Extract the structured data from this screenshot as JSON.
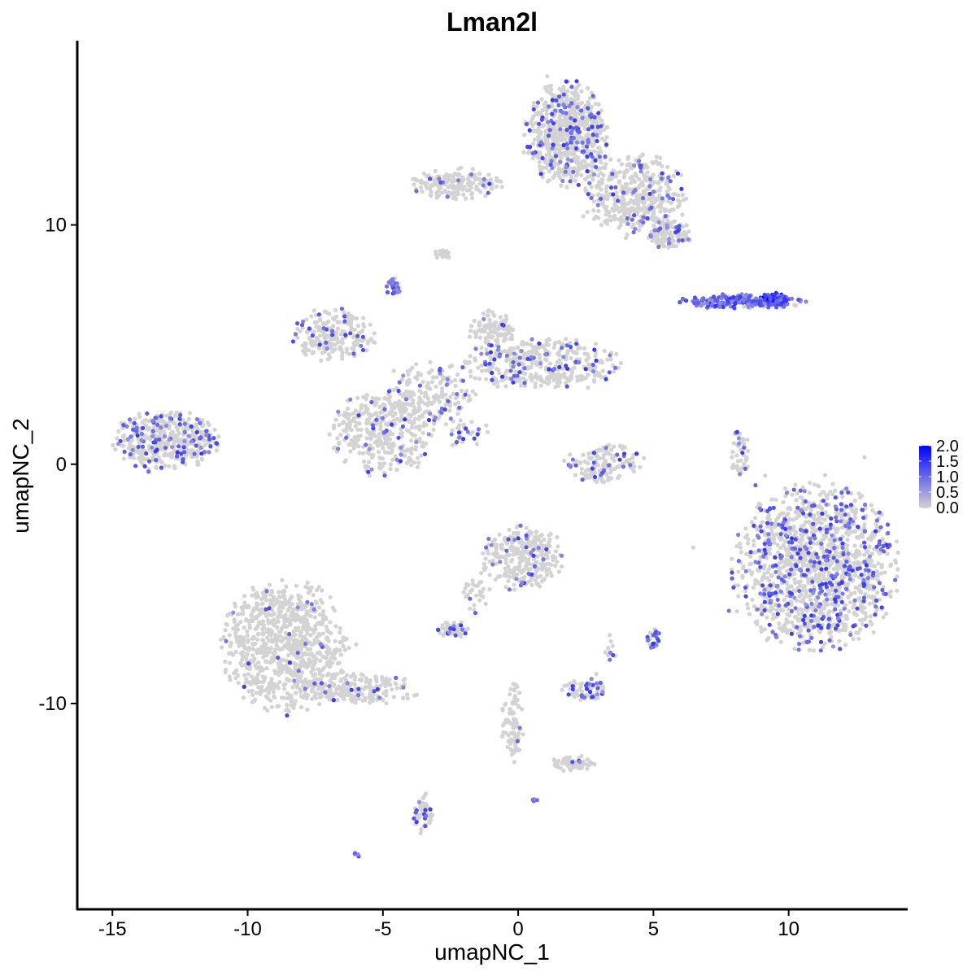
{
  "chart_data": {
    "type": "scatter",
    "title": "Lman2l",
    "xlabel": "umapNC_1",
    "ylabel": "umapNC_2",
    "xlim": [
      -16.3,
      14.4
    ],
    "ylim": [
      -18.6,
      17.7
    ],
    "xticks": [
      -15,
      -10,
      -5,
      0,
      5,
      10
    ],
    "yticks": [
      -10,
      0,
      10
    ],
    "xtick_labels": [
      "-15",
      "-10",
      "-5",
      "0",
      "5",
      "10"
    ],
    "ytick_labels": [
      "-10",
      "0",
      "10"
    ],
    "grid": false,
    "color_low": "#D3D3D3",
    "color_high": "#0000FF",
    "legend": {
      "placement": "right",
      "range": [
        0,
        2.0
      ],
      "labels": [
        "2.0",
        "1.5",
        "1.0",
        "0.5",
        "0.0"
      ],
      "values": [
        2.0,
        1.5,
        1.0,
        0.5,
        0.0
      ]
    },
    "clusters": [
      {
        "center": [
          -13,
          1
        ],
        "spread": [
          1.5,
          0.9
        ],
        "n": 420,
        "expressing_fraction": 0.2
      },
      {
        "center": [
          1.8,
          13.8
        ],
        "spread": [
          1.1,
          1.6
        ],
        "n": 700,
        "expressing_fraction": 0.15
      },
      {
        "center": [
          4.4,
          11.2
        ],
        "spread": [
          1.4,
          1.3
        ],
        "n": 420,
        "expressing_fraction": 0.08
      },
      {
        "center": [
          5.6,
          9.6
        ],
        "spread": [
          0.6,
          0.45
        ],
        "n": 120,
        "expressing_fraction": 0.08
      },
      {
        "center": [
          -2.3,
          11.7
        ],
        "spread": [
          1.2,
          0.45
        ],
        "n": 180,
        "expressing_fraction": 0.05
      },
      {
        "center": [
          -2.8,
          8.8
        ],
        "spread": [
          0.25,
          0.15
        ],
        "n": 20,
        "expressing_fraction": 0.0
      },
      {
        "center": [
          -4.6,
          7.4
        ],
        "spread": [
          0.2,
          0.3
        ],
        "n": 30,
        "expressing_fraction": 0.7
      },
      {
        "center": [
          8.3,
          6.8
        ],
        "spread": [
          1.7,
          0.22
        ],
        "n": 200,
        "expressing_fraction": 0.75
      },
      {
        "center": [
          9.5,
          6.9
        ],
        "spread": [
          0.35,
          0.2
        ],
        "n": 70,
        "expressing_fraction": 0.95
      },
      {
        "center": [
          -6.8,
          5.4
        ],
        "spread": [
          1.1,
          0.8
        ],
        "n": 220,
        "expressing_fraction": 0.12
      },
      {
        "center": [
          -5.0,
          1.3
        ],
        "spread": [
          1.4,
          1.3
        ],
        "n": 380,
        "expressing_fraction": 0.1
      },
      {
        "center": [
          0.9,
          4.2
        ],
        "spread": [
          2.1,
          0.8
        ],
        "n": 380,
        "expressing_fraction": 0.15
      },
      {
        "center": [
          -1.0,
          5.6
        ],
        "spread": [
          0.6,
          0.6
        ],
        "n": 100,
        "expressing_fraction": 0.1
      },
      {
        "center": [
          -3.0,
          3.0
        ],
        "spread": [
          1.1,
          1.0
        ],
        "n": 160,
        "expressing_fraction": 0.08
      },
      {
        "center": [
          -1.8,
          1.3
        ],
        "spread": [
          0.6,
          0.4
        ],
        "n": 30,
        "expressing_fraction": 0.3
      },
      {
        "center": [
          3.2,
          0.0
        ],
        "spread": [
          1.1,
          0.6
        ],
        "n": 150,
        "expressing_fraction": 0.1
      },
      {
        "center": [
          8.2,
          0.3
        ],
        "spread": [
          0.25,
          0.9
        ],
        "n": 45,
        "expressing_fraction": 0.15
      },
      {
        "center": [
          11.0,
          -4.3
        ],
        "spread": [
          2.2,
          2.5
        ],
        "n": 1400,
        "expressing_fraction": 0.22
      },
      {
        "center": [
          0.2,
          -3.9
        ],
        "spread": [
          1.1,
          1.0
        ],
        "n": 300,
        "expressing_fraction": 0.08
      },
      {
        "center": [
          -8.6,
          -7.6
        ],
        "spread": [
          1.7,
          2.0
        ],
        "n": 900,
        "expressing_fraction": 0.02
      },
      {
        "center": [
          -5.8,
          -9.4
        ],
        "spread": [
          1.6,
          0.45
        ],
        "n": 200,
        "expressing_fraction": 0.05
      },
      {
        "center": [
          -2.4,
          -6.9
        ],
        "spread": [
          0.4,
          0.25
        ],
        "n": 60,
        "expressing_fraction": 0.2
      },
      {
        "center": [
          -1.6,
          -5.4
        ],
        "spread": [
          0.4,
          0.6
        ],
        "n": 30,
        "expressing_fraction": 0.1
      },
      {
        "center": [
          2.4,
          -9.5
        ],
        "spread": [
          0.6,
          0.4
        ],
        "n": 70,
        "expressing_fraction": 0.3
      },
      {
        "center": [
          5.0,
          -7.3
        ],
        "spread": [
          0.2,
          0.3
        ],
        "n": 25,
        "expressing_fraction": 0.7
      },
      {
        "center": [
          3.4,
          -7.7
        ],
        "spread": [
          0.15,
          0.4
        ],
        "n": 12,
        "expressing_fraction": 0.4
      },
      {
        "center": [
          -3.5,
          -14.6
        ],
        "spread": [
          0.3,
          0.6
        ],
        "n": 50,
        "expressing_fraction": 0.25
      },
      {
        "center": [
          -6.0,
          -16.3
        ],
        "spread": [
          0.1,
          0.1
        ],
        "n": 6,
        "expressing_fraction": 0.8
      },
      {
        "center": [
          -0.2,
          -10.8
        ],
        "spread": [
          0.3,
          1.2
        ],
        "n": 90,
        "expressing_fraction": 0.05
      },
      {
        "center": [
          2.0,
          -12.5
        ],
        "spread": [
          0.6,
          0.25
        ],
        "n": 60,
        "expressing_fraction": 0.05
      },
      {
        "center": [
          0.6,
          -14.0
        ],
        "spread": [
          0.08,
          0.08
        ],
        "n": 5,
        "expressing_fraction": 0.8
      }
    ]
  }
}
